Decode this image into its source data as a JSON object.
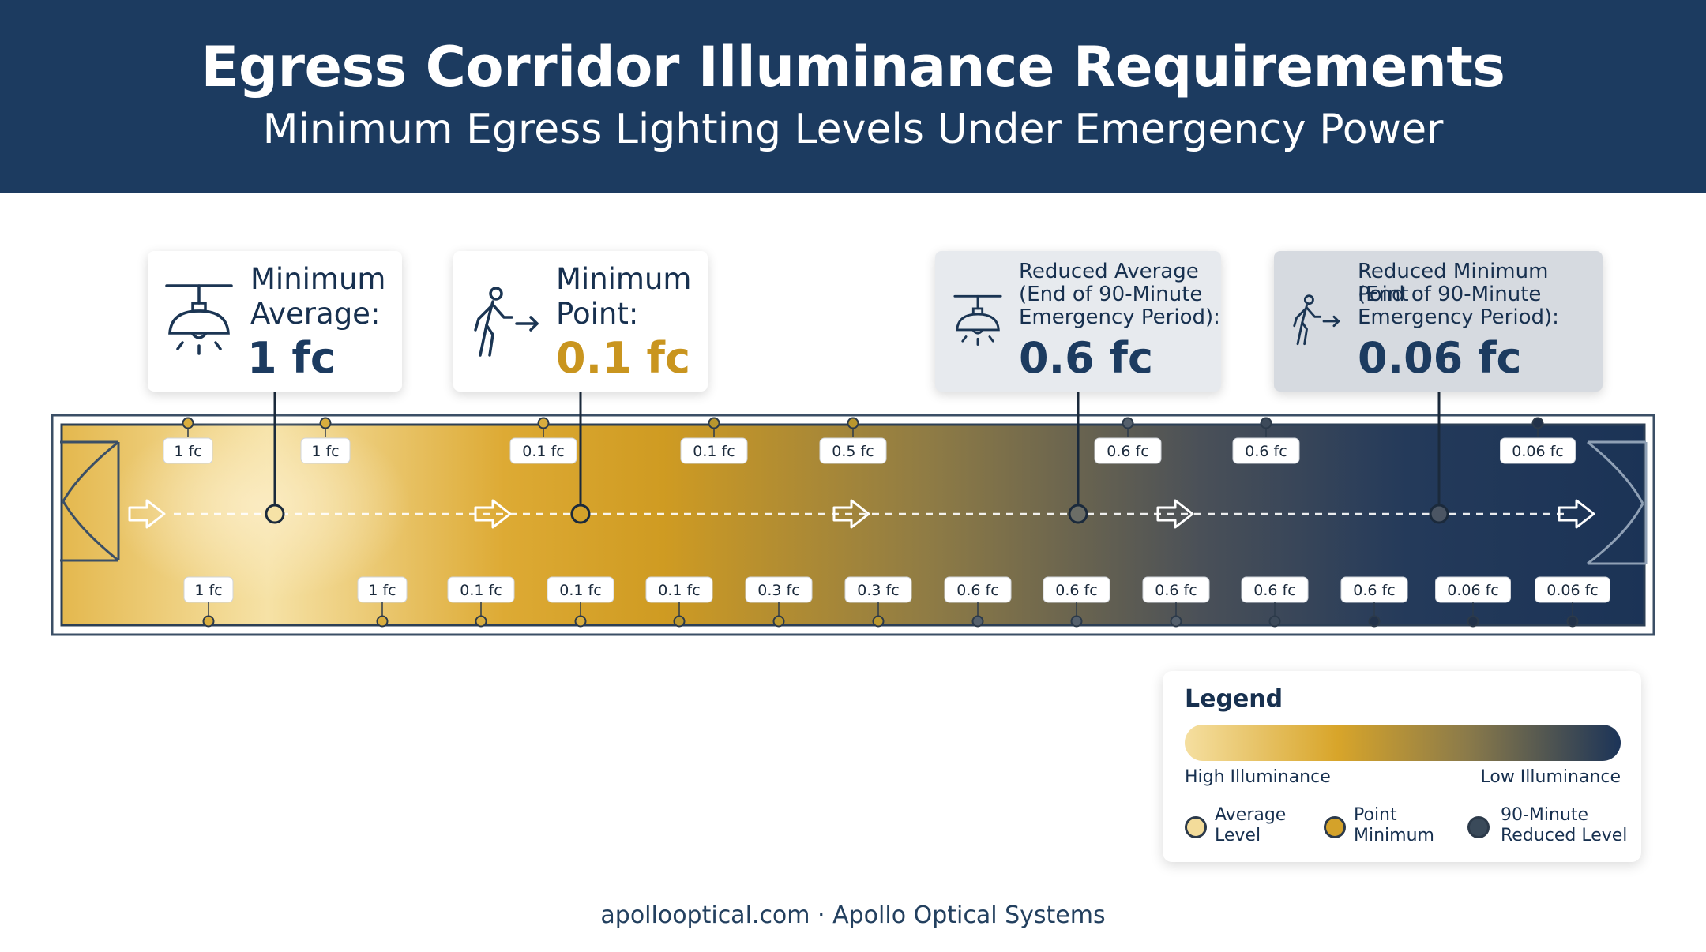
{
  "header": {
    "title": "Egress Corridor Illuminance Requirements",
    "subtitle": "Minimum Egress Lighting Levels Under Emergency Power"
  },
  "cards": [
    {
      "label_line1": "Minimum",
      "label_line2": "Average:",
      "value": "1 fc",
      "icon": "ceiling-lamp-icon"
    },
    {
      "label_line1": "Minimum",
      "label_line2": "Point:",
      "value": "0.1 fc",
      "icon": "walking-person-arrow-icon"
    },
    {
      "label_line1": "Reduced Average",
      "label_line2": "(End of 90-Minute",
      "label_line3": "Emergency Period):",
      "value": "0.6 fc",
      "icon": "ceiling-lamp-icon"
    },
    {
      "label_line1": "Reduced Minimum Point",
      "label_line2": "(End of 90-Minute",
      "label_line3": "Emergency Period):",
      "value": "0.06 fc",
      "icon": "walking-person-arrow-icon"
    }
  ],
  "top_readings": [
    "1 fc",
    "1 fc",
    "0.1 fc",
    "0.1 fc",
    "0.5 fc",
    "0.6 fc",
    "0.6 fc",
    "0.06 fc"
  ],
  "bottom_readings": [
    "1 fc",
    "1 fc",
    "0.1 fc",
    "0.1 fc",
    "0.1 fc",
    "0.3 fc",
    "0.3 fc",
    "0.6 fc",
    "0.6 fc",
    "0.6 fc",
    "0.6 fc",
    "0.6 fc",
    "0.06 fc",
    "0.06 fc"
  ],
  "legend": {
    "title": "Legend",
    "high": "High Illuminance",
    "low": "Low Illuminance",
    "items": [
      {
        "line1": "Average",
        "line2": "Level",
        "color": "#f3dc9a"
      },
      {
        "line1": "Point",
        "line2": "Minimum",
        "color": "#d4a22a"
      },
      {
        "line1": "90-Minute",
        "line2": "Reduced Level",
        "color": "#3a4a5a"
      }
    ]
  },
  "colors": {
    "navy": "#1c3b60",
    "gold": "#c9951f",
    "pale_gold": "#f5dfa0"
  },
  "footer": "apollooptical.com · Apollo Optical Systems"
}
